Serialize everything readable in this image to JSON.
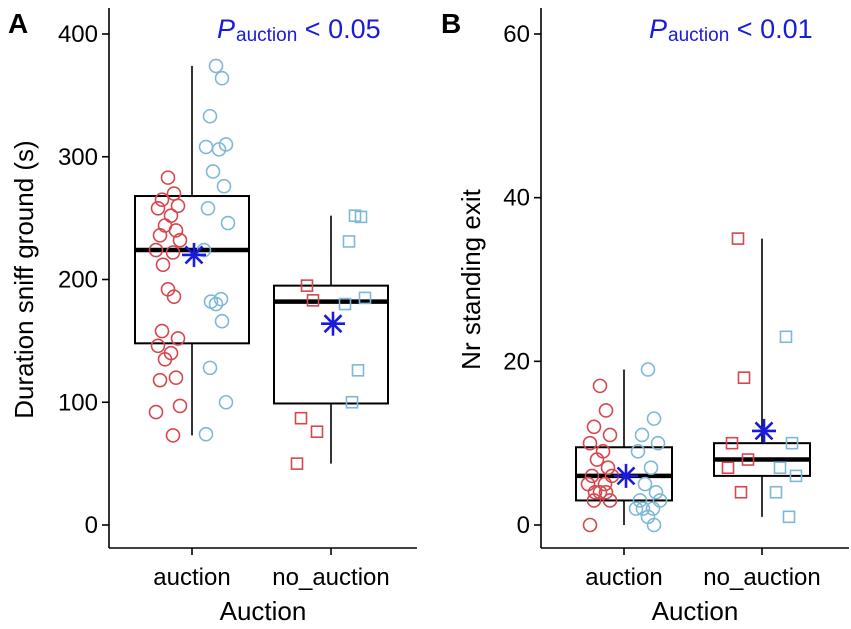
{
  "colors": {
    "auction": "#d6474f",
    "no_auction": "#7fb8d6",
    "mean": "#1a1adb",
    "pvalue": "#1a1adb"
  },
  "chart_data": [
    {
      "type": "boxplot",
      "panel_label": "A",
      "pvalue": {
        "symbol": "P",
        "subscript": "auction",
        "text": " < 0.05"
      },
      "xlabel": "Auction",
      "ylabel": "Duration sniff ground (s)",
      "ylim": [
        0,
        400
      ],
      "yticks": [
        0,
        100,
        200,
        300,
        400
      ],
      "categories": [
        "auction",
        "no_auction"
      ],
      "boxes": [
        {
          "category": "auction",
          "min": 73,
          "q1": 148,
          "median": 224,
          "q3": 268,
          "max": 374,
          "mean": 220
        },
        {
          "category": "no_auction",
          "min": 50,
          "q1": 99,
          "median": 182,
          "q3": 195,
          "max": 252,
          "mean": 164
        }
      ],
      "points": [
        {
          "category": "auction",
          "group": "auction",
          "shape": "circle",
          "values": [
            283,
            270,
            265,
            260,
            258,
            252,
            244,
            240,
            236,
            232,
            224,
            222,
            212,
            192,
            186,
            158,
            152,
            146,
            140,
            135,
            120,
            118,
            97,
            92,
            73
          ]
        },
        {
          "category": "auction",
          "group": "no_auction",
          "shape": "circle",
          "values": [
            374,
            364,
            333,
            310,
            308,
            306,
            288,
            276,
            258,
            246,
            224,
            184,
            182,
            180,
            166,
            128,
            100,
            74
          ]
        },
        {
          "category": "no_auction",
          "group": "auction",
          "shape": "square",
          "values": [
            195,
            183,
            87,
            76,
            50
          ]
        },
        {
          "category": "no_auction",
          "group": "no_auction",
          "shape": "square",
          "values": [
            252,
            251,
            231,
            185,
            180,
            126,
            100
          ]
        }
      ]
    },
    {
      "type": "boxplot",
      "panel_label": "B",
      "pvalue": {
        "symbol": "P",
        "subscript": "auction",
        "text": " < 0.01"
      },
      "xlabel": "Auction",
      "ylabel": "Nr standing exit",
      "ylim": [
        0,
        60
      ],
      "yticks": [
        0,
        20,
        40,
        60
      ],
      "categories": [
        "auction",
        "no_auction"
      ],
      "boxes": [
        {
          "category": "auction",
          "min": 0,
          "q1": 3,
          "median": 6,
          "q3": 9.5,
          "max": 19,
          "mean": 6
        },
        {
          "category": "no_auction",
          "min": 1,
          "q1": 6,
          "median": 8,
          "q3": 10,
          "max": 35,
          "mean": 11.5
        }
      ],
      "points": [
        {
          "category": "auction",
          "group": "auction",
          "shape": "circle",
          "values": [
            17,
            14,
            12,
            11,
            10,
            9,
            8,
            7,
            6,
            6,
            5,
            5,
            4,
            4,
            4,
            3,
            3,
            0
          ]
        },
        {
          "category": "auction",
          "group": "no_auction",
          "shape": "circle",
          "values": [
            19,
            13,
            11,
            10,
            9,
            7,
            5,
            4,
            3,
            3,
            2,
            2,
            2,
            1,
            0
          ]
        },
        {
          "category": "no_auction",
          "group": "auction",
          "shape": "square",
          "values": [
            35,
            18,
            10,
            8,
            7,
            4
          ]
        },
        {
          "category": "no_auction",
          "group": "no_auction",
          "shape": "square",
          "values": [
            23,
            10,
            7,
            6,
            4,
            1
          ]
        }
      ]
    }
  ]
}
